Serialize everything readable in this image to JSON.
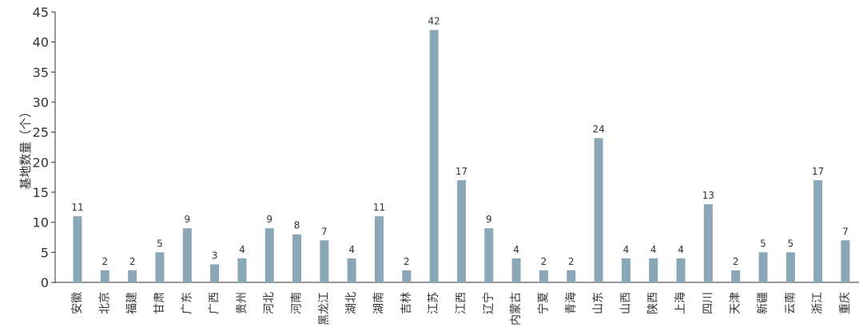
{
  "chart_data": {
    "type": "bar",
    "ylabel": "基地数量（个）",
    "xlabel": "",
    "ylim": [
      0,
      45
    ],
    "yticks": [
      0,
      5,
      10,
      15,
      20,
      25,
      30,
      35,
      40,
      45
    ],
    "grid": false,
    "legend": "none",
    "bar_color": "#8aa7b8",
    "axis_color": "#333333",
    "categories": [
      "安徽",
      "北京",
      "福建",
      "甘肃",
      "广东",
      "广西",
      "贵州",
      "河北",
      "河南",
      "黑龙江",
      "湖北",
      "湖南",
      "吉林",
      "江苏",
      "江西",
      "辽宁",
      "内蒙古",
      "宁夏",
      "青海",
      "山东",
      "山西",
      "陕西",
      "上海",
      "四川",
      "天津",
      "新疆",
      "云南",
      "浙江",
      "重庆"
    ],
    "values": [
      11,
      2,
      2,
      5,
      9,
      3,
      4,
      9,
      8,
      7,
      4,
      11,
      2,
      42,
      17,
      9,
      4,
      2,
      2,
      24,
      4,
      4,
      4,
      13,
      2,
      5,
      5,
      17,
      7
    ]
  }
}
